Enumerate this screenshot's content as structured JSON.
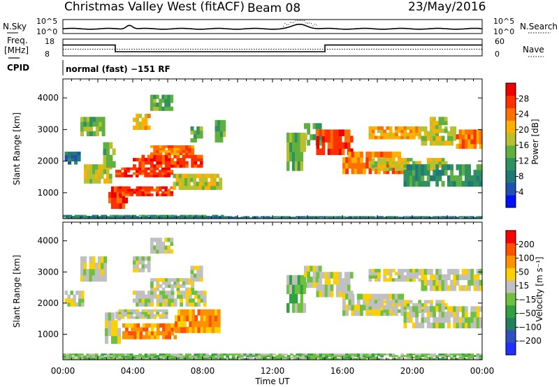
{
  "header": {
    "title": "Christmas Valley West (fitACF)",
    "beam": "Beam 08",
    "date": "23/May/2016"
  },
  "left_labels": {
    "nsky": "N.Sky",
    "freq": "Freq.",
    "freq_unit": "[MHz]",
    "cpid": "CPID"
  },
  "right_labels": {
    "nsearch": "N.Search",
    "nave": "Nave"
  },
  "cpid_text": "normal (fast) −151 RF",
  "colors": {
    "power_scale": [
      "#0010ff",
      "#2050b0",
      "#207878",
      "#309060",
      "#60b040",
      "#b8c030",
      "#ffb000",
      "#ff7000",
      "#ff3000",
      "#ee0000"
    ],
    "velocity_scale": [
      "#2030ff",
      "#3050c0",
      "#208060",
      "#30a040",
      "#70c040",
      "#c0c0c0",
      "#ffd000",
      "#ff9000",
      "#ff5000",
      "#ff0000"
    ]
  },
  "chart_data": [
    {
      "type": "line",
      "name": "noise-panel",
      "left_ticks": [
        "10^5",
        "10^0"
      ],
      "right_ticks": [
        "10^5",
        "10^0"
      ]
    },
    {
      "type": "line",
      "name": "freq-nave-panel",
      "left_ticks": [
        "18",
        "8"
      ],
      "right_ticks": [
        "60",
        "0"
      ],
      "freq_mhz": [
        [
          0,
          14.5
        ],
        [
          3,
          14.5
        ],
        [
          3,
          10.5
        ],
        [
          15,
          10.5
        ],
        [
          15,
          14.5
        ],
        [
          24,
          14.5
        ]
      ],
      "nave": [
        [
          0,
          24
        ],
        [
          24,
          24
        ]
      ]
    },
    {
      "type": "heatmap",
      "name": "power-panel",
      "ylabel": "Slant Range [km]",
      "yticks": [
        "1000",
        "2000",
        "3000",
        "4000"
      ],
      "yvalues": [
        1000,
        2000,
        3000,
        4000
      ],
      "ylim": [
        180,
        4600
      ],
      "xlim": [
        0,
        24
      ],
      "colorbar_label": "Power [dB]",
      "colorbar_ticks": [
        "4",
        "8",
        "12",
        "16",
        "20",
        "24",
        "28"
      ],
      "regions": [
        {
          "t0": 0.0,
          "t1": 9.2,
          "r0": 180,
          "r1": 300,
          "level": 3
        },
        {
          "t0": 0.0,
          "t1": 24,
          "r0": 180,
          "r1": 260,
          "level": 2
        },
        {
          "t0": 0.1,
          "t1": 1.0,
          "r0": 1900,
          "r1": 2300,
          "level": 2
        },
        {
          "t0": 1.0,
          "t1": 2.4,
          "r0": 2800,
          "r1": 3400,
          "level": 4
        },
        {
          "t0": 1.2,
          "t1": 2.8,
          "r0": 1300,
          "r1": 1900,
          "level": 5
        },
        {
          "t0": 2.3,
          "t1": 3.0,
          "r0": 1800,
          "r1": 2600,
          "level": 4
        },
        {
          "t0": 2.6,
          "t1": 3.7,
          "r0": 500,
          "r1": 1200,
          "level": 8
        },
        {
          "t0": 3.0,
          "t1": 6.3,
          "r0": 1500,
          "r1": 1800,
          "level": 8
        },
        {
          "t0": 3.2,
          "t1": 6.3,
          "r0": 900,
          "r1": 1200,
          "level": 8
        },
        {
          "t0": 4.0,
          "t1": 8.0,
          "r0": 1800,
          "r1": 2200,
          "level": 8
        },
        {
          "t0": 5.0,
          "t1": 7.5,
          "r0": 2200,
          "r1": 2500,
          "level": 7
        },
        {
          "t0": 6.3,
          "t1": 9.1,
          "r0": 1100,
          "r1": 1600,
          "level": 5
        },
        {
          "t0": 4.0,
          "t1": 5.0,
          "r0": 3000,
          "r1": 3500,
          "level": 6
        },
        {
          "t0": 5.0,
          "t1": 6.3,
          "r0": 3600,
          "r1": 4100,
          "level": 4
        },
        {
          "t0": 7.3,
          "t1": 8.0,
          "r0": 2600,
          "r1": 3100,
          "level": 4
        },
        {
          "t0": 8.7,
          "t1": 9.3,
          "r0": 2600,
          "r1": 3300,
          "level": 4
        },
        {
          "t0": 12.8,
          "t1": 13.9,
          "r0": 1700,
          "r1": 2900,
          "level": 4
        },
        {
          "t0": 13.8,
          "t1": 14.8,
          "r0": 2500,
          "r1": 3200,
          "level": 4
        },
        {
          "t0": 14.5,
          "t1": 16.6,
          "r0": 2200,
          "r1": 3000,
          "level": 8
        },
        {
          "t0": 16.0,
          "t1": 19.5,
          "r0": 1600,
          "r1": 2300,
          "level": 7
        },
        {
          "t0": 17.5,
          "t1": 22.0,
          "r0": 1700,
          "r1": 2100,
          "level": 5
        },
        {
          "t0": 19.5,
          "t1": 24.0,
          "r0": 1200,
          "r1": 1900,
          "level": 3
        },
        {
          "t0": 17.5,
          "t1": 20.5,
          "r0": 2700,
          "r1": 3100,
          "level": 6
        },
        {
          "t0": 20.5,
          "t1": 22.5,
          "r0": 2500,
          "r1": 3100,
          "level": 5
        },
        {
          "t0": 22.5,
          "t1": 24.0,
          "r0": 2400,
          "r1": 3000,
          "level": 7
        },
        {
          "t0": 21.0,
          "t1": 22.0,
          "r0": 2900,
          "r1": 3400,
          "level": 5
        }
      ]
    },
    {
      "type": "heatmap",
      "name": "velocity-panel",
      "xlabel": "Time UT",
      "ylabel": "Slant Range [km]",
      "yticks": [
        "1000",
        "2000",
        "3000",
        "4000"
      ],
      "yvalues": [
        1000,
        2000,
        3000,
        4000
      ],
      "ylim": [
        180,
        4600
      ],
      "xlim": [
        0,
        24
      ],
      "xticks": [
        "00:00",
        "04:00",
        "08:00",
        "12:00",
        "16:00",
        "20:00",
        "00:00"
      ],
      "xvalues": [
        0,
        4,
        8,
        12,
        16,
        20,
        24
      ],
      "colorbar_label": "Velocity [m s⁻¹]",
      "colorbar_ticks": [
        "200",
        "100",
        "50",
        "15",
        "−15",
        "−50",
        "−100",
        "−200"
      ],
      "regions": [
        {
          "t0": 0.0,
          "t1": 24,
          "r0": 180,
          "r1": 380,
          "level": 4
        },
        {
          "t0": 0.0,
          "t1": 9.2,
          "r0": 180,
          "r1": 300,
          "level": 4
        },
        {
          "t0": 0.1,
          "t1": 1.2,
          "r0": 1900,
          "r1": 2400,
          "level": 5
        },
        {
          "t0": 1.0,
          "t1": 2.5,
          "r0": 2700,
          "r1": 3500,
          "level": 5
        },
        {
          "t0": 2.4,
          "t1": 3.3,
          "r0": 700,
          "r1": 1700,
          "level": 5
        },
        {
          "t0": 3.0,
          "t1": 6.0,
          "r0": 1500,
          "r1": 1800,
          "level": 5
        },
        {
          "t0": 4.0,
          "t1": 8.2,
          "r0": 1900,
          "r1": 2400,
          "level": 5
        },
        {
          "t0": 5.0,
          "t1": 7.5,
          "r0": 2400,
          "r1": 2800,
          "level": 5
        },
        {
          "t0": 3.4,
          "t1": 6.5,
          "r0": 850,
          "r1": 1350,
          "level": 7
        },
        {
          "t0": 6.4,
          "t1": 9.0,
          "r0": 1050,
          "r1": 1800,
          "level": 7
        },
        {
          "t0": 4.0,
          "t1": 5.0,
          "r0": 3000,
          "r1": 3500,
          "level": 5
        },
        {
          "t0": 5.0,
          "t1": 6.3,
          "r0": 3600,
          "r1": 4100,
          "level": 5
        },
        {
          "t0": 7.3,
          "t1": 8.0,
          "r0": 2700,
          "r1": 3200,
          "level": 5
        },
        {
          "t0": 12.8,
          "t1": 13.9,
          "r0": 1700,
          "r1": 2900,
          "level": 4
        },
        {
          "t0": 13.8,
          "t1": 14.8,
          "r0": 2500,
          "r1": 3200,
          "level": 5
        },
        {
          "t0": 14.5,
          "t1": 16.6,
          "r0": 2200,
          "r1": 3000,
          "level": 5
        },
        {
          "t0": 16.0,
          "t1": 19.5,
          "r0": 1600,
          "r1": 2300,
          "level": 5
        },
        {
          "t0": 17.5,
          "t1": 22.0,
          "r0": 1700,
          "r1": 2100,
          "level": 5
        },
        {
          "t0": 19.5,
          "t1": 24.0,
          "r0": 1200,
          "r1": 1900,
          "level": 5
        },
        {
          "t0": 17.5,
          "t1": 20.5,
          "r0": 2700,
          "r1": 3100,
          "level": 5
        },
        {
          "t0": 20.5,
          "t1": 24.0,
          "r0": 2400,
          "r1": 3100,
          "level": 5
        }
      ]
    }
  ]
}
